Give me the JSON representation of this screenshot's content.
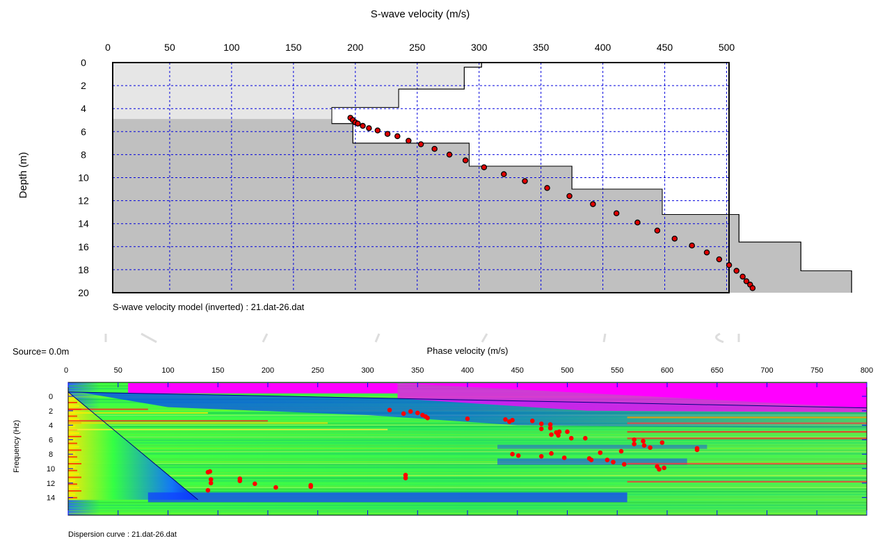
{
  "velocity_model": {
    "title": "S-wave velocity (m/s)",
    "ylabel": "Depth (m)",
    "caption": "S-wave velocity model (inverted) : 21.dat-26.dat",
    "colors": {
      "grid": "#0000dd",
      "shade_light": "#e6e6e6",
      "shade_dark": "#c0c0c0",
      "point_fill": "#e00000",
      "point_edge": "#000000"
    }
  },
  "dispersion": {
    "source_label": "Source=  0.0m",
    "xlabel": "Phase velocity (m/s)",
    "ylabel": "Frequency (Hz)",
    "caption": "Dispersion curve : 21.dat-26.dat",
    "colors": {
      "point": "#ff0000",
      "line": "#000080",
      "grid": "#0000ff",
      "magenta": "#ff00ff"
    }
  },
  "chart_data": [
    {
      "type": "step-line + scatter",
      "title": "S-wave velocity (m/s)",
      "xlabel": "S-wave velocity (m/s)",
      "ylabel": "Depth (m)",
      "xlim": [
        0,
        500
      ],
      "ylim": [
        0,
        20
      ],
      "x_ticks": [
        0,
        50,
        100,
        150,
        200,
        250,
        300,
        350,
        400,
        450,
        500
      ],
      "y_ticks": [
        0,
        2,
        4,
        6,
        8,
        10,
        12,
        14,
        16,
        18,
        20
      ],
      "grid": true,
      "shade_boundary_depth": 4.9,
      "velocity_profile": [
        {
          "top": 0,
          "bottom": 0.4,
          "vs": 302
        },
        {
          "top": 0.4,
          "bottom": 2.3,
          "vs": 288
        },
        {
          "top": 2.3,
          "bottom": 3.9,
          "vs": 235
        },
        {
          "top": 3.9,
          "bottom": 5.3,
          "vs": 181
        },
        {
          "top": 5.3,
          "bottom": 7.0,
          "vs": 198
        },
        {
          "top": 7.0,
          "bottom": 9.0,
          "vs": 292
        },
        {
          "top": 9.0,
          "bottom": 11.0,
          "vs": 375
        },
        {
          "top": 11.0,
          "bottom": 13.2,
          "vs": 448
        },
        {
          "top": 13.2,
          "bottom": 15.6,
          "vs": 510
        },
        {
          "top": 15.6,
          "bottom": 18.1,
          "vs": 560
        },
        {
          "top": 18.1,
          "bottom": 20.0,
          "vs": 601
        }
      ],
      "points": [
        {
          "x": 196,
          "y": 4.8
        },
        {
          "x": 198,
          "y": 5.0
        },
        {
          "x": 200,
          "y": 5.2
        },
        {
          "x": 202,
          "y": 5.3
        },
        {
          "x": 206,
          "y": 5.5
        },
        {
          "x": 211,
          "y": 5.7
        },
        {
          "x": 218,
          "y": 5.9
        },
        {
          "x": 226,
          "y": 6.2
        },
        {
          "x": 234,
          "y": 6.4
        },
        {
          "x": 243,
          "y": 6.8
        },
        {
          "x": 253,
          "y": 7.1
        },
        {
          "x": 264,
          "y": 7.5
        },
        {
          "x": 276,
          "y": 8.0
        },
        {
          "x": 289,
          "y": 8.5
        },
        {
          "x": 304,
          "y": 9.1
        },
        {
          "x": 320,
          "y": 9.7
        },
        {
          "x": 337,
          "y": 10.3
        },
        {
          "x": 355,
          "y": 10.9
        },
        {
          "x": 373,
          "y": 11.6
        },
        {
          "x": 392,
          "y": 12.3
        },
        {
          "x": 411,
          "y": 13.1
        },
        {
          "x": 428,
          "y": 13.9
        },
        {
          "x": 444,
          "y": 14.6
        },
        {
          "x": 458,
          "y": 15.3
        },
        {
          "x": 472,
          "y": 15.9
        },
        {
          "x": 484,
          "y": 16.5
        },
        {
          "x": 494,
          "y": 17.1
        },
        {
          "x": 502,
          "y": 17.6
        },
        {
          "x": 508,
          "y": 18.1
        },
        {
          "x": 513,
          "y": 18.6
        },
        {
          "x": 516,
          "y": 19.0
        },
        {
          "x": 519,
          "y": 19.3
        },
        {
          "x": 521,
          "y": 19.6
        }
      ]
    },
    {
      "type": "heatmap + scatter",
      "title": "",
      "xlabel": "Phase velocity (m/s)",
      "ylabel": "Frequency (Hz)",
      "xlim": [
        0,
        800
      ],
      "ylim": [
        -1,
        15
      ],
      "x_ticks": [
        0,
        50,
        100,
        150,
        200,
        250,
        300,
        350,
        400,
        450,
        500,
        550,
        600,
        650,
        700,
        750,
        800
      ],
      "y_ticks": [
        0,
        2,
        4,
        6,
        8,
        10,
        12,
        14
      ],
      "grid": true,
      "points": [
        {
          "x": 140,
          "y": 10.5
        },
        {
          "x": 142,
          "y": 10.4
        },
        {
          "x": 143,
          "y": 11.5
        },
        {
          "x": 143,
          "y": 12.0
        },
        {
          "x": 140,
          "y": 13.0
        },
        {
          "x": 172,
          "y": 11.7
        },
        {
          "x": 172,
          "y": 11.4
        },
        {
          "x": 187,
          "y": 12.1
        },
        {
          "x": 208,
          "y": 12.6
        },
        {
          "x": 243,
          "y": 12.3
        },
        {
          "x": 243,
          "y": 12.5
        },
        {
          "x": 322,
          "y": 1.9
        },
        {
          "x": 336,
          "y": 2.4
        },
        {
          "x": 343,
          "y": 2.1
        },
        {
          "x": 350,
          "y": 2.3
        },
        {
          "x": 355,
          "y": 2.6
        },
        {
          "x": 358,
          "y": 2.8
        },
        {
          "x": 360,
          "y": 3.0
        },
        {
          "x": 338,
          "y": 10.9
        },
        {
          "x": 338,
          "y": 11.3
        },
        {
          "x": 400,
          "y": 3.1
        },
        {
          "x": 438,
          "y": 3.2
        },
        {
          "x": 442,
          "y": 3.5
        },
        {
          "x": 445,
          "y": 3.3
        },
        {
          "x": 445,
          "y": 8.0
        },
        {
          "x": 451,
          "y": 8.2
        },
        {
          "x": 465,
          "y": 3.4
        },
        {
          "x": 474,
          "y": 3.8
        },
        {
          "x": 474,
          "y": 4.5
        },
        {
          "x": 474,
          "y": 8.3
        },
        {
          "x": 483,
          "y": 3.9
        },
        {
          "x": 483,
          "y": 4.4
        },
        {
          "x": 484,
          "y": 5.3
        },
        {
          "x": 484,
          "y": 7.9
        },
        {
          "x": 489,
          "y": 5.0
        },
        {
          "x": 491,
          "y": 5.4
        },
        {
          "x": 492,
          "y": 4.9
        },
        {
          "x": 497,
          "y": 8.5
        },
        {
          "x": 500,
          "y": 4.9
        },
        {
          "x": 504,
          "y": 5.8
        },
        {
          "x": 518,
          "y": 5.8
        },
        {
          "x": 522,
          "y": 8.6
        },
        {
          "x": 524,
          "y": 8.8
        },
        {
          "x": 533,
          "y": 7.8
        },
        {
          "x": 540,
          "y": 8.8
        },
        {
          "x": 546,
          "y": 9.1
        },
        {
          "x": 554,
          "y": 7.6
        },
        {
          "x": 557,
          "y": 9.4
        },
        {
          "x": 567,
          "y": 6.0
        },
        {
          "x": 567,
          "y": 6.6
        },
        {
          "x": 576,
          "y": 6.2
        },
        {
          "x": 577,
          "y": 6.8
        },
        {
          "x": 583,
          "y": 7.1
        },
        {
          "x": 590,
          "y": 9.7
        },
        {
          "x": 592,
          "y": 10.1
        },
        {
          "x": 595,
          "y": 6.4
        },
        {
          "x": 597,
          "y": 9.9
        },
        {
          "x": 630,
          "y": 7.2
        },
        {
          "x": 630,
          "y": 7.4
        }
      ]
    }
  ]
}
